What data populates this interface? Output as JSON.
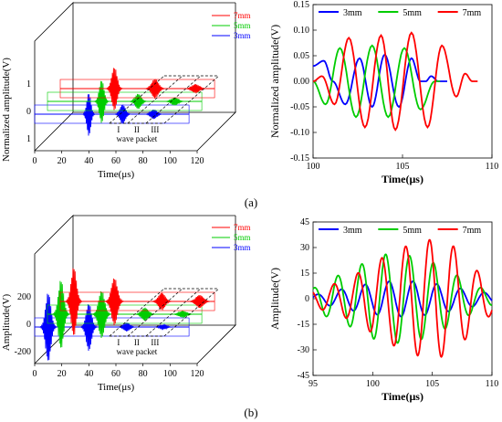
{
  "panel_a": {
    "label": "(a)"
  },
  "panel_b": {
    "label": "(b)"
  },
  "series_colors": {
    "7mm": "#ff0000",
    "5mm": "#00cc00",
    "3mm": "#0000ff"
  },
  "chart_data": [
    {
      "id": "a_left",
      "type": "line",
      "projection": "3d-waterfall",
      "xlabel": "Time(μs)",
      "ylabel": "Normalized amplitude(V)",
      "x_ticks": [
        "0",
        "20",
        "40",
        "60",
        "80",
        "100",
        "120"
      ],
      "y_ticks": [
        "1",
        "0",
        "1"
      ],
      "legend": [
        {
          "name": "7mm",
          "color": "#ff0000"
        },
        {
          "name": "5mm",
          "color": "#00cc00"
        },
        {
          "name": "3mm",
          "color": "#0000ff"
        }
      ],
      "annotations": [
        "I",
        "II",
        "III",
        "wave packet"
      ],
      "series": [
        {
          "name": "3mm",
          "color": "#0000ff",
          "depth": 0,
          "packets": [
            {
              "t": 40,
              "amp": 1.0,
              "cycles": 6
            },
            {
              "t": 65,
              "amp": 0.45,
              "cycles": 8
            },
            {
              "t": 88,
              "amp": 0.22,
              "cycles": 9
            }
          ]
        },
        {
          "name": "5mm",
          "color": "#00cc00",
          "depth": 1,
          "packets": [
            {
              "t": 40,
              "amp": 1.0,
              "cycles": 7
            },
            {
              "t": 67,
              "amp": 0.35,
              "cycles": 9
            },
            {
              "t": 94,
              "amp": 0.18,
              "cycles": 10
            }
          ]
        },
        {
          "name": "7mm",
          "color": "#ff0000",
          "depth": 2,
          "packets": [
            {
              "t": 40,
              "amp": 1.0,
              "cycles": 8
            },
            {
              "t": 70,
              "amp": 0.45,
              "cycles": 10
            },
            {
              "t": 100,
              "amp": 0.2,
              "cycles": 11
            }
          ]
        }
      ]
    },
    {
      "id": "a_right",
      "type": "line",
      "xlabel": "Time(μs)",
      "ylabel": "Normalized amplitude(V)",
      "xlim": [
        100,
        110
      ],
      "ylim": [
        -0.15,
        0.15
      ],
      "x_ticks": [
        100,
        105,
        110
      ],
      "y_ticks": [
        -0.15,
        -0.1,
        -0.05,
        0.0,
        0.05,
        0.1,
        0.15
      ],
      "legend_position": "top",
      "series": [
        {
          "name": "3mm",
          "color": "#0000ff",
          "x": [
            100,
            100.6,
            101.1,
            101.8,
            102.6,
            103.3,
            104.0,
            104.8,
            105.5,
            106.0,
            106.3,
            106.6,
            107.0,
            107.5
          ],
          "y": [
            0.03,
            0.04,
            0.0,
            -0.045,
            0.045,
            -0.05,
            0.052,
            -0.05,
            0.045,
            0.0,
            0.0,
            0.01,
            0.0,
            0.0
          ]
        },
        {
          "name": "5mm",
          "color": "#00cc00",
          "x": [
            100,
            100.7,
            101.5,
            102.4,
            103.3,
            104.2,
            105.1,
            106.0,
            106.8,
            107.1
          ],
          "y": [
            0.0,
            -0.045,
            0.065,
            -0.07,
            0.07,
            -0.07,
            0.065,
            -0.055,
            0.0,
            0.0
          ]
        },
        {
          "name": "7mm",
          "color": "#ff0000",
          "x": [
            100,
            100.5,
            101.2,
            102.0,
            102.9,
            103.8,
            104.6,
            105.5,
            106.4,
            107.2,
            108.0,
            108.5,
            108.9,
            109.2
          ],
          "y": [
            0.0,
            0.01,
            -0.045,
            0.085,
            -0.09,
            0.09,
            -0.095,
            0.095,
            -0.09,
            0.07,
            -0.03,
            0.015,
            0.0,
            0.0
          ]
        }
      ]
    },
    {
      "id": "b_left",
      "type": "line",
      "projection": "3d-waterfall",
      "xlabel": "Time(μs)",
      "ylabel": "Amplitude(V)",
      "x_ticks": [
        "0",
        "20",
        "40",
        "60",
        "80",
        "100",
        "120"
      ],
      "y_ticks": [
        "-200",
        "0",
        "200"
      ],
      "legend": [
        {
          "name": "7mm",
          "color": "#ff0000"
        },
        {
          "name": "5mm",
          "color": "#00cc00"
        },
        {
          "name": "3mm",
          "color": "#0000ff"
        }
      ],
      "annotations": [
        "I",
        "II",
        "III",
        "wave packet"
      ],
      "series": [
        {
          "name": "3mm",
          "color": "#0000ff",
          "depth": 0,
          "packets": [
            {
              "t": 10,
              "amp": 1.6,
              "cycles": 8
            },
            {
              "t": 40,
              "amp": 1.1,
              "cycles": 8
            },
            {
              "t": 68,
              "amp": 0.2,
              "cycles": 9
            },
            {
              "t": 95,
              "amp": 0.1,
              "cycles": 10
            }
          ]
        },
        {
          "name": "5mm",
          "color": "#00cc00",
          "depth": 1,
          "packets": [
            {
              "t": 10,
              "amp": 1.6,
              "cycles": 8
            },
            {
              "t": 40,
              "amp": 1.1,
              "cycles": 9
            },
            {
              "t": 72,
              "amp": 0.3,
              "cycles": 10
            },
            {
              "t": 100,
              "amp": 0.15,
              "cycles": 11
            }
          ]
        },
        {
          "name": "7mm",
          "color": "#ff0000",
          "depth": 2,
          "packets": [
            {
              "t": 10,
              "amp": 1.6,
              "cycles": 8
            },
            {
              "t": 40,
              "amp": 1.1,
              "cycles": 9
            },
            {
              "t": 75,
              "amp": 0.4,
              "cycles": 10
            },
            {
              "t": 103,
              "amp": 0.3,
              "cycles": 11
            }
          ]
        }
      ]
    },
    {
      "id": "b_right",
      "type": "line",
      "xlabel": "Time(μs)",
      "ylabel": "Amplitude(V)",
      "xlim": [
        95,
        110
      ],
      "ylim": [
        -45,
        45
      ],
      "x_ticks": [
        95,
        100,
        105,
        110
      ],
      "y_ticks": [
        -45,
        -30,
        -15,
        0,
        15,
        30,
        45
      ],
      "legend_position": "top",
      "series": [
        {
          "name": "3mm",
          "color": "#0000ff",
          "freq": 0.5,
          "phase": 0.4,
          "x": [
            95,
            97,
            99,
            101,
            102.5,
            104,
            106,
            108,
            110
          ],
          "amp": [
            2,
            5,
            8,
            10,
            10.5,
            10,
            8,
            5,
            3
          ]
        },
        {
          "name": "5mm",
          "color": "#00cc00",
          "freq": 0.5,
          "phase": 1.3,
          "x": [
            95,
            96.5,
            98,
            99.5,
            101,
            102.5,
            104,
            105.5,
            107,
            108.5,
            110
          ],
          "amp": [
            6,
            12,
            16,
            22,
            26,
            26,
            24,
            20,
            14,
            8,
            4
          ]
        },
        {
          "name": "7mm",
          "color": "#ff0000",
          "freq": 0.5,
          "phase": 2.3,
          "x": [
            95,
            96.5,
            98,
            99.5,
            101,
            102.5,
            104,
            105.5,
            107,
            108.5,
            110
          ],
          "amp": [
            5,
            8,
            12,
            18,
            25,
            30,
            34,
            35,
            30,
            18,
            9
          ]
        }
      ]
    }
  ]
}
